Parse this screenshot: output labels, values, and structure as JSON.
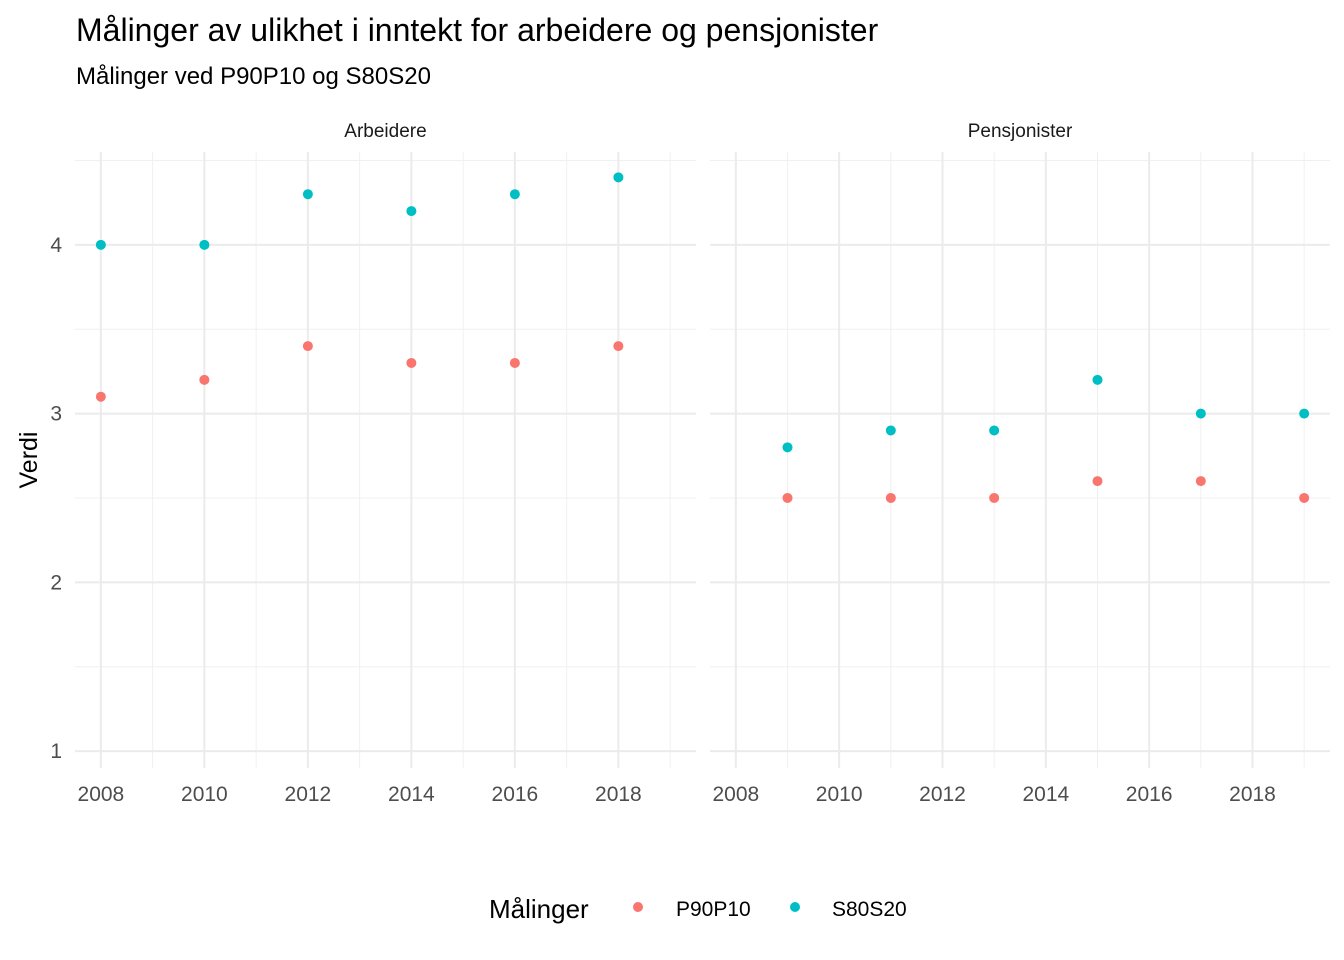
{
  "chart_data": {
    "type": "scatter",
    "title": "Målinger av ulikhet i inntekt for arbeidere og pensjonister",
    "subtitle": "Målinger ved P90P10 og S80S20",
    "ylabel": "Verdi",
    "xlabel": "",
    "grid": true,
    "ylim": [
      0.9,
      4.55
    ],
    "yticks": [
      1,
      2,
      3,
      4
    ],
    "xticks": [
      2008,
      2010,
      2012,
      2014,
      2016,
      2018
    ],
    "legend": {
      "title": "Målinger",
      "placement": "bottom",
      "entries": [
        {
          "label": "P90P10",
          "color": "#F8766D"
        },
        {
          "label": "S80S20",
          "color": "#00BFC4"
        }
      ]
    },
    "panels": [
      {
        "label": "Arbeidere",
        "xlim": [
          2007.5,
          2019.5
        ],
        "series": [
          {
            "name": "P90P10",
            "color": "#F8766D",
            "points": [
              [
                2008,
                3.1
              ],
              [
                2010,
                3.2
              ],
              [
                2012,
                3.4
              ],
              [
                2014,
                3.3
              ],
              [
                2016,
                3.3
              ],
              [
                2018,
                3.4
              ]
            ]
          },
          {
            "name": "S80S20",
            "color": "#00BFC4",
            "points": [
              [
                2008,
                4.0
              ],
              [
                2010,
                4.0
              ],
              [
                2012,
                4.3
              ],
              [
                2014,
                4.2
              ],
              [
                2016,
                4.3
              ],
              [
                2018,
                4.4
              ]
            ]
          }
        ]
      },
      {
        "label": "Pensjonister",
        "xlim": [
          2007.5,
          2019.5
        ],
        "series": [
          {
            "name": "P90P10",
            "color": "#F8766D",
            "points": [
              [
                2009,
                2.5
              ],
              [
                2011,
                2.5
              ],
              [
                2013,
                2.5
              ],
              [
                2015,
                2.6
              ],
              [
                2017,
                2.6
              ],
              [
                2019,
                2.5
              ]
            ]
          },
          {
            "name": "S80S20",
            "color": "#00BFC4",
            "points": [
              [
                2009,
                2.8
              ],
              [
                2011,
                2.9
              ],
              [
                2013,
                2.9
              ],
              [
                2015,
                3.2
              ],
              [
                2017,
                3.0
              ],
              [
                2019,
                3.0
              ]
            ]
          }
        ]
      }
    ]
  }
}
